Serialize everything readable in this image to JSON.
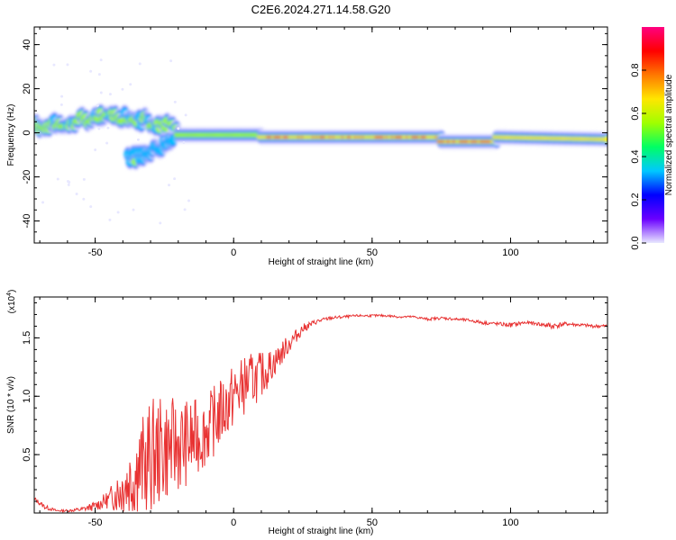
{
  "title": "C2E6.2024.271.14.58.G20",
  "colors": {
    "snr_line": "#e83232",
    "axes": "#000000",
    "background": "#ffffff"
  },
  "chart_data": [
    {
      "type": "heatmap",
      "xlabel": "Height of straight line (km)",
      "ylabel": "Frequency (Hz)",
      "xlim": [
        -72,
        135
      ],
      "ylim": [
        -50,
        48
      ],
      "x_ticks": [
        -50,
        0,
        50,
        100
      ],
      "y_ticks": [
        -40,
        -20,
        0,
        20,
        40
      ],
      "colorbar": {
        "label": "Normalized spectral amplitude",
        "range": [
          0,
          1
        ],
        "ticks": [
          "0.0",
          "0.2",
          "0.4",
          "0.6",
          "0.8"
        ],
        "colormap": [
          "#e8e8ff",
          "#6a00ff",
          "#0000ff",
          "#00c8ff",
          "#00ff64",
          "#a0ff00",
          "#ffe600",
          "#ff7800",
          "#ff0000",
          "#ff0080"
        ]
      },
      "bands": [
        {
          "x": [
            -72,
            -20
          ],
          "freq": [
            3,
            5,
            8,
            6,
            2
          ],
          "amp": 0.55
        },
        {
          "x": [
            -38,
            -22
          ],
          "freq": [
            -12,
            -4
          ],
          "amp": 0.45
        },
        {
          "x": [
            -20,
            10
          ],
          "freq": [
            -1,
            -1
          ],
          "amp": 0.6
        },
        {
          "x": [
            10,
            75
          ],
          "freq": [
            -2,
            -2
          ],
          "amp": 0.9
        },
        {
          "x": [
            75,
            95
          ],
          "freq": [
            -4,
            -4
          ],
          "amp": 0.95
        },
        {
          "x": [
            95,
            135
          ],
          "freq": [
            -2,
            -3
          ],
          "amp": 0.8
        }
      ]
    },
    {
      "type": "line",
      "xlabel": "Height of straight line (km)",
      "ylabel": "SNR (10 * v/v)",
      "y_multiplier": "(x10",
      "y_multiplier_exp": "4",
      "xlim": [
        -72,
        135
      ],
      "ylim": [
        0,
        1.85
      ],
      "x_ticks": [
        -50,
        0,
        50,
        100
      ],
      "y_ticks": [
        "0.5",
        "1.0",
        "1.5"
      ],
      "y_tick_values": [
        0.5,
        1.0,
        1.5
      ],
      "series": [
        {
          "x": [
            -72,
            -68,
            -64,
            -60,
            -55,
            -50,
            -45,
            -40,
            -35,
            -30,
            -25,
            -20,
            -15,
            -10,
            -5,
            0,
            5,
            10,
            15,
            20,
            25,
            30,
            35,
            40,
            45,
            50,
            55,
            60,
            65,
            70,
            75,
            80,
            85,
            90,
            95,
            100,
            105,
            110,
            115,
            120,
            125,
            130,
            135
          ],
          "y": [
            0.12,
            0.05,
            0.02,
            0.02,
            0.03,
            0.06,
            0.12,
            0.22,
            0.35,
            0.48,
            0.55,
            0.58,
            0.62,
            0.7,
            0.85,
            1.0,
            1.12,
            1.18,
            1.3,
            1.45,
            1.58,
            1.64,
            1.67,
            1.68,
            1.69,
            1.69,
            1.69,
            1.68,
            1.68,
            1.66,
            1.67,
            1.66,
            1.65,
            1.63,
            1.62,
            1.61,
            1.63,
            1.62,
            1.6,
            1.62,
            1.61,
            1.6,
            1.6
          ],
          "noise": [
            0.02,
            0.02,
            0.01,
            0.01,
            0.02,
            0.04,
            0.08,
            0.25,
            0.4,
            0.5,
            0.45,
            0.4,
            0.35,
            0.3,
            0.3,
            0.28,
            0.25,
            0.2,
            0.12,
            0.08,
            0.04,
            0.02,
            0.015,
            0.012,
            0.01,
            0.01,
            0.01,
            0.01,
            0.01,
            0.012,
            0.012,
            0.012,
            0.012,
            0.015,
            0.015,
            0.02,
            0.015,
            0.015,
            0.03,
            0.015,
            0.015,
            0.015,
            0.015
          ]
        }
      ]
    }
  ]
}
